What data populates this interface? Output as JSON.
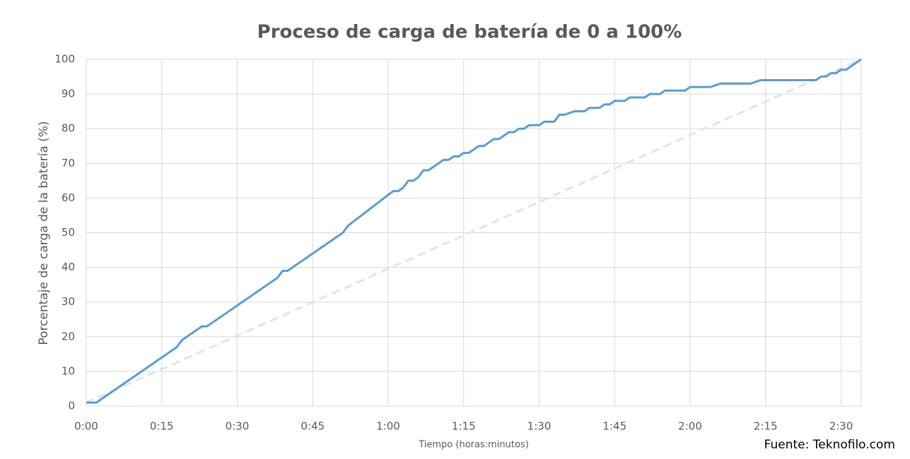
{
  "chart_data": {
    "type": "line",
    "title": "Proceso de carga de batería de 0 a 100%",
    "x_label": "Tiempo (horas:minutos)",
    "y_label": "Porcentaje de carga de la batería (%)",
    "source": "Fuente: Teknofilo.com",
    "xlim": [
      0,
      154
    ],
    "ylim": [
      0,
      100
    ],
    "xticks": [
      {
        "value": 0,
        "label": "0:00"
      },
      {
        "value": 15,
        "label": "0:15"
      },
      {
        "value": 30,
        "label": "0:30"
      },
      {
        "value": 45,
        "label": "0:45"
      },
      {
        "value": 60,
        "label": "1:00"
      },
      {
        "value": 75,
        "label": "1:15"
      },
      {
        "value": 90,
        "label": "1:30"
      },
      {
        "value": 105,
        "label": "1:45"
      },
      {
        "value": 120,
        "label": "2:00"
      },
      {
        "value": 135,
        "label": "2:15"
      },
      {
        "value": 150,
        "label": "2:30"
      }
    ],
    "yticks": [
      0,
      10,
      20,
      30,
      40,
      50,
      60,
      70,
      80,
      90,
      100
    ],
    "grid": true,
    "series": [
      {
        "color": "#5b9bd5",
        "dashed": false,
        "x": [
          0,
          2,
          18,
          19,
          23,
          24,
          38,
          39,
          40,
          51,
          52,
          61,
          62,
          63,
          64,
          65,
          66,
          67,
          68,
          71,
          72,
          73,
          74,
          75,
          76,
          78,
          79,
          81,
          82,
          84,
          85,
          86,
          87,
          88,
          90,
          91,
          93,
          94,
          95,
          97,
          99,
          100,
          102,
          103,
          104,
          105,
          107,
          108,
          111,
          112,
          114,
          115,
          119,
          120,
          124,
          126,
          132,
          134,
          145,
          146,
          147,
          148,
          149,
          150,
          151,
          152,
          153,
          154
        ],
        "values": [
          1,
          1,
          17,
          19,
          23,
          23,
          37,
          39,
          39,
          50,
          52,
          62,
          62,
          63,
          65,
          65,
          66,
          68,
          68,
          71,
          71,
          72,
          72,
          73,
          73,
          75,
          75,
          77,
          77,
          79,
          79,
          80,
          80,
          81,
          81,
          82,
          82,
          84,
          84,
          85,
          85,
          86,
          86,
          87,
          87,
          88,
          88,
          89,
          89,
          90,
          90,
          91,
          91,
          92,
          92,
          93,
          93,
          94,
          94,
          95,
          95,
          96,
          96,
          97,
          97,
          98,
          99,
          100
        ]
      },
      {
        "color": "#dae6f5",
        "dashed": true,
        "x": [
          0,
          154
        ],
        "values": [
          1,
          100
        ]
      }
    ]
  }
}
